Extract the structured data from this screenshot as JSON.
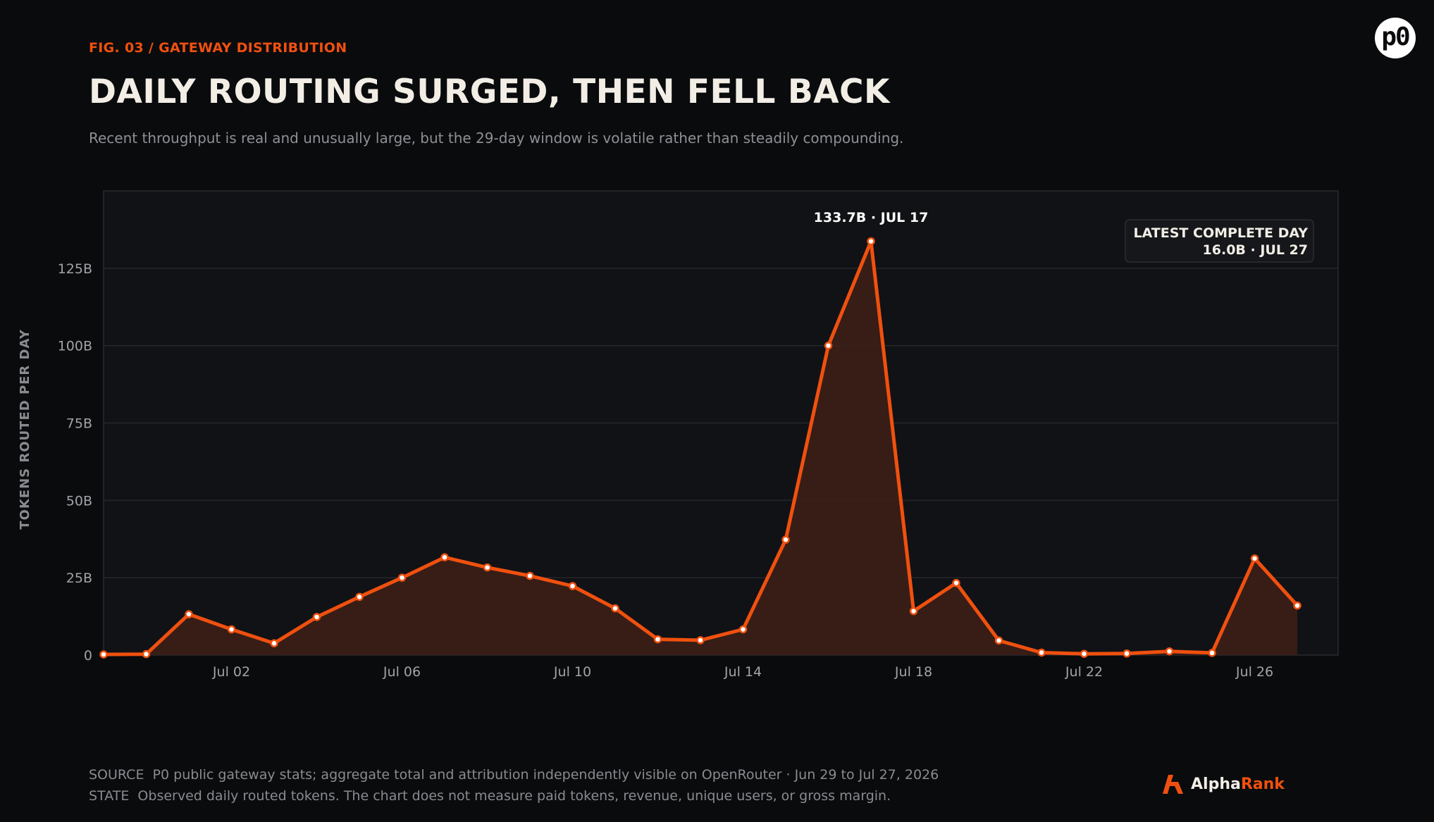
{
  "header": {
    "kicker": "FIG. 03 / GATEWAY DISTRIBUTION",
    "title": "DAILY ROUTING SURGED, THEN FELL BACK",
    "subtitle": "Recent throughput is real and unusually large, but the 29-day window is volatile rather than steadily compounding."
  },
  "badge": {
    "label": "p0"
  },
  "colors": {
    "accent": "#f0500f",
    "area_fill": "#3a1f16",
    "plot_bg": "#111215",
    "page_bg": "#0a0b0d",
    "grid": "#26272b"
  },
  "chart_data": {
    "type": "area",
    "title": "DAILY ROUTING SURGED, THEN FELL BACK",
    "ylabel": "TOKENS ROUTED PER DAY",
    "xlabel": "",
    "x_range": [
      "Jun 29",
      "Jul 27"
    ],
    "ylim": [
      0,
      150
    ],
    "y_unit": "B",
    "y_ticks": [
      {
        "value": 0,
        "label": "0"
      },
      {
        "value": 25,
        "label": "25B"
      },
      {
        "value": 50,
        "label": "50B"
      },
      {
        "value": 75,
        "label": "75B"
      },
      {
        "value": 100,
        "label": "100B"
      },
      {
        "value": 125,
        "label": "125B"
      }
    ],
    "x_ticks": [
      "Jul 02",
      "Jul 06",
      "Jul 10",
      "Jul 14",
      "Jul 18",
      "Jul 22",
      "Jul 26"
    ],
    "grid": true,
    "series": [
      {
        "x": [
          "Jun 29",
          "Jun 30",
          "Jul 01",
          "Jul 02",
          "Jul 03",
          "Jul 04",
          "Jul 05",
          "Jul 06",
          "Jul 07",
          "Jul 08",
          "Jul 09",
          "Jul 10",
          "Jul 11",
          "Jul 12",
          "Jul 13",
          "Jul 14",
          "Jul 15",
          "Jul 16",
          "Jul 17",
          "Jul 18",
          "Jul 19",
          "Jul 20",
          "Jul 21",
          "Jul 22",
          "Jul 23",
          "Jul 24",
          "Jul 25",
          "Jul 26",
          "Jul 27"
        ],
        "values": [
          0.2,
          0.3,
          13.2,
          8.3,
          3.8,
          12.3,
          18.8,
          25.0,
          31.6,
          28.3,
          25.6,
          22.3,
          15.1,
          5.1,
          4.8,
          8.3,
          37.3,
          100.0,
          133.7,
          14.2,
          23.3,
          4.7,
          0.8,
          0.4,
          0.5,
          1.2,
          0.7,
          31.2,
          16.0
        ]
      }
    ],
    "annotations": {
      "peak": {
        "index": 18,
        "value_label": "133.7B",
        "separator": "·",
        "date_label": "JUL 17"
      },
      "latest": {
        "title": "LATEST COMPLETE DAY",
        "value_label": "16.0B",
        "separator": "·",
        "date_label": "JUL 27",
        "placement": "top-right"
      }
    }
  },
  "footer": {
    "source_tag": "SOURCE",
    "source_text": "P0 public gateway stats; aggregate total and attribution independently visible on OpenRouter · Jun 29 to Jul 27, 2026",
    "state_tag": "STATE",
    "state_text": "Observed daily routed tokens. The chart does not measure paid tokens, revenue, unique users, or gross margin."
  },
  "brand": {
    "name_a": "Alpha",
    "name_b": "Rank",
    "icon": "alpharank-logo-icon"
  }
}
